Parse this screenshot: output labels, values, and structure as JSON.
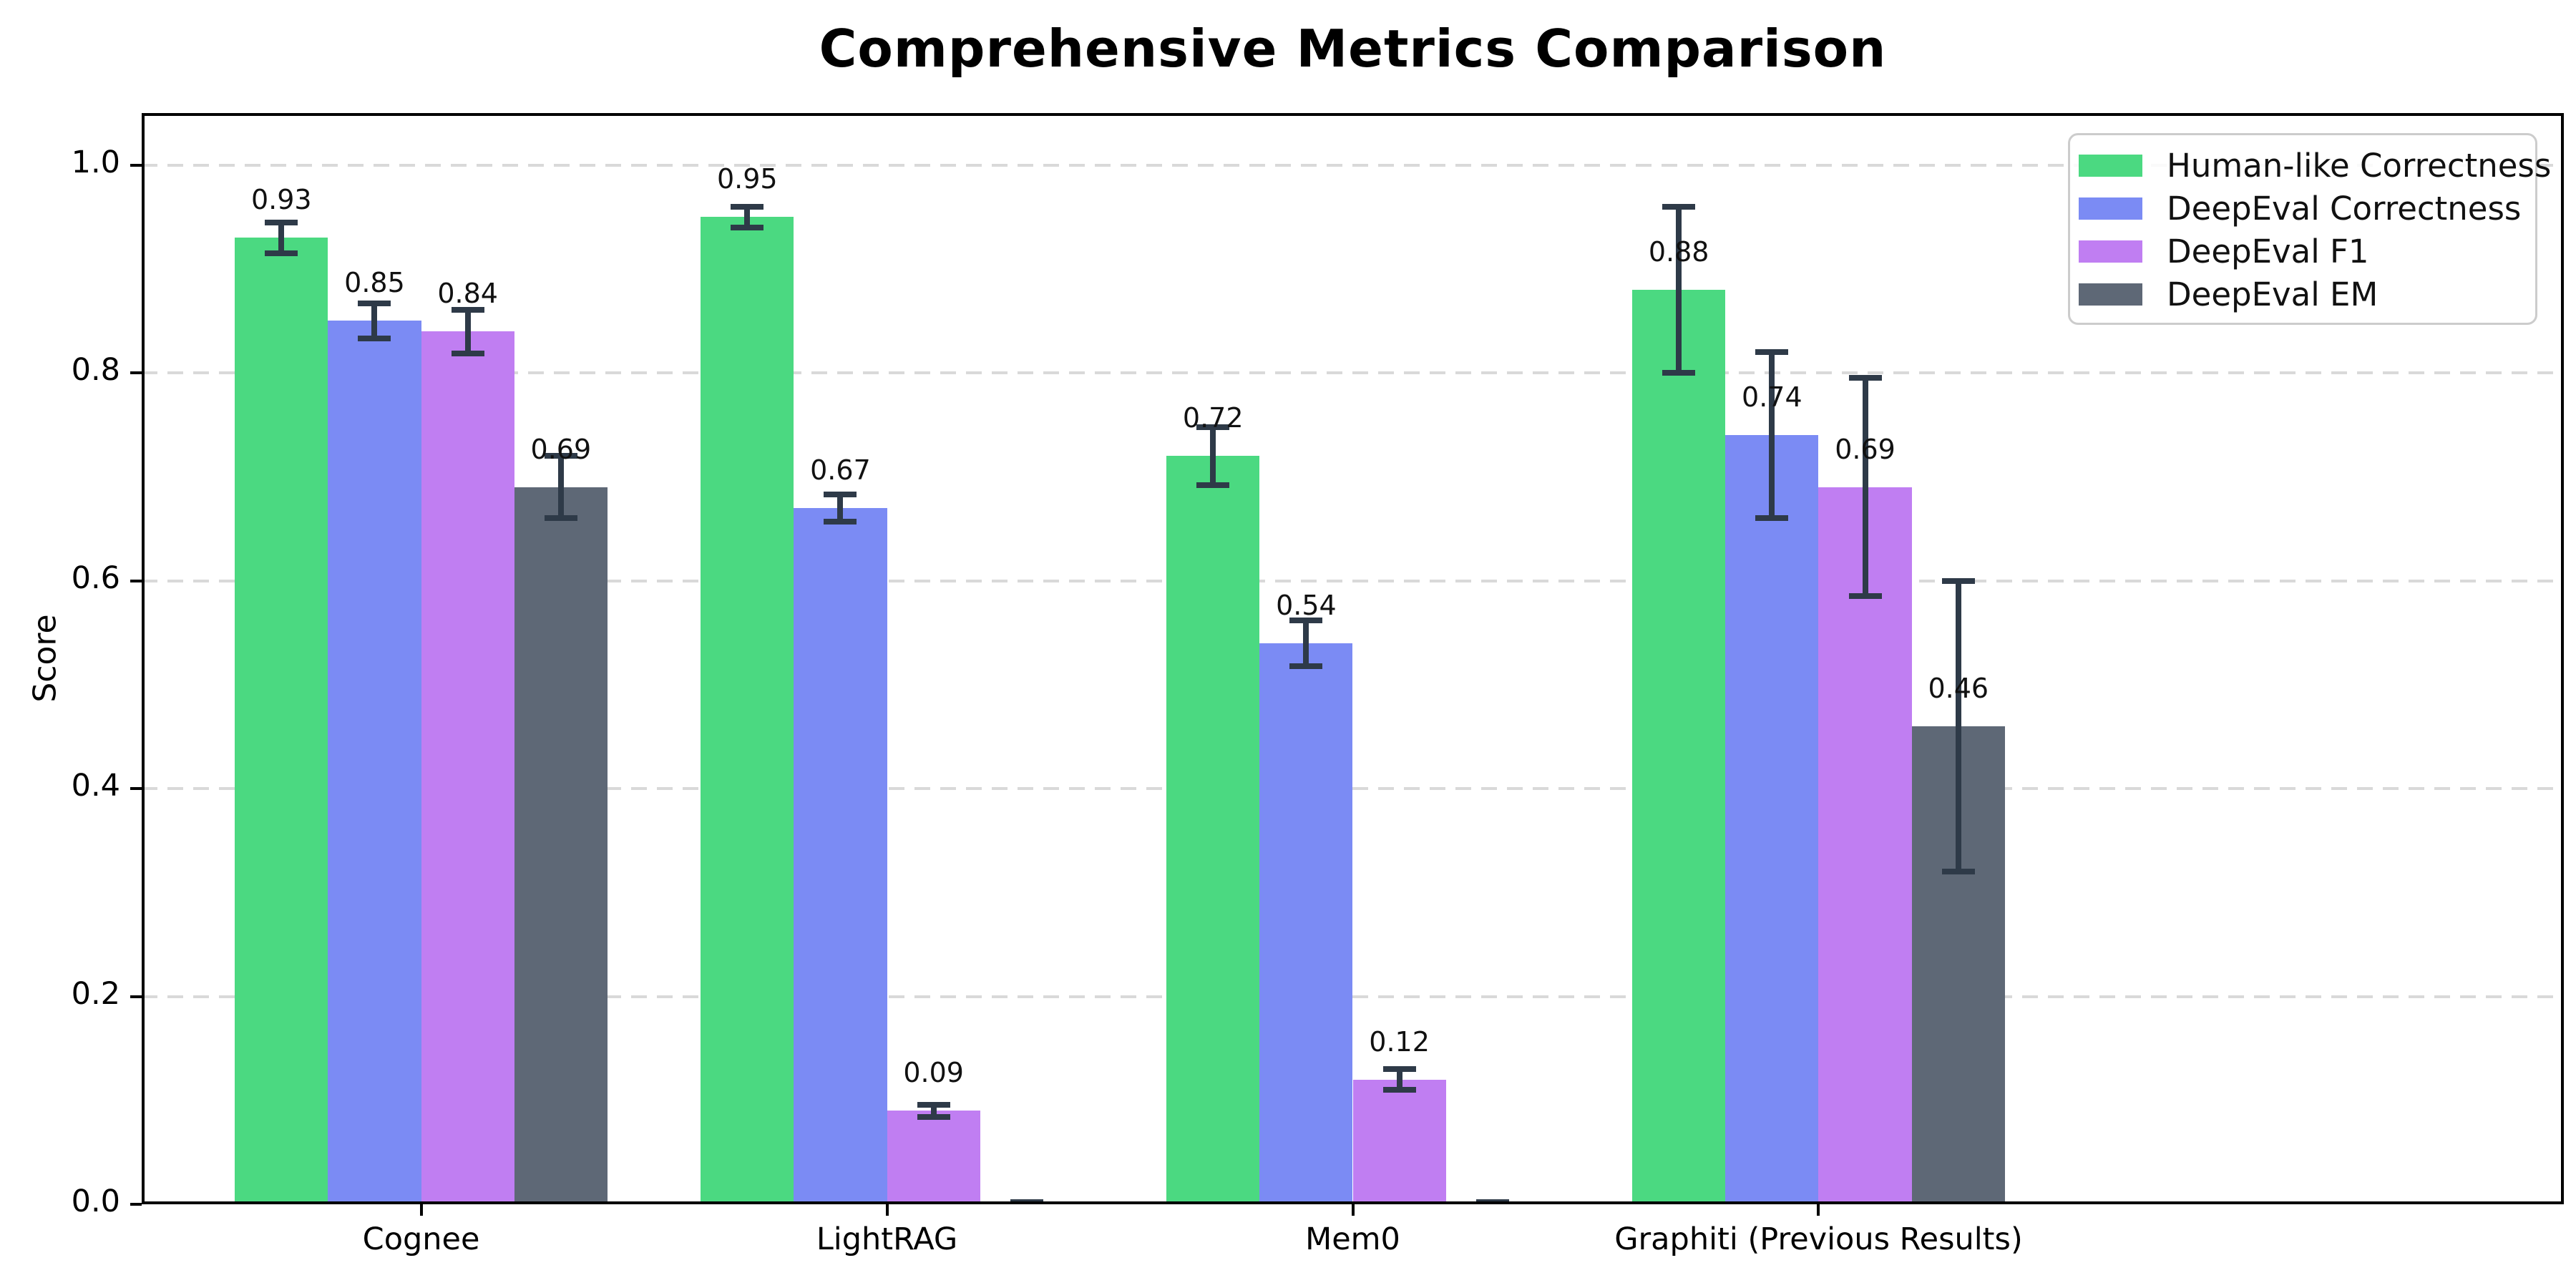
{
  "chart_data": {
    "type": "bar",
    "title": "Comprehensive Metrics Comparison",
    "ylabel": "Score",
    "xlabel": "",
    "categories": [
      "Cognee",
      "LightRAG",
      "Mem0",
      "Graphiti (Previous Results)"
    ],
    "series": [
      {
        "name": "Human-like Correctness",
        "color": "#4bd981",
        "values": [
          0.93,
          0.95,
          0.72,
          0.88
        ],
        "errors": [
          0.015,
          0.01,
          0.028,
          0.08
        ],
        "labels": [
          "0.93",
          "0.95",
          "0.72",
          "0.88"
        ]
      },
      {
        "name": "DeepEval Correctness",
        "color": "#7b8bf4",
        "values": [
          0.85,
          0.67,
          0.54,
          0.74
        ],
        "errors": [
          0.017,
          0.013,
          0.022,
          0.08
        ],
        "labels": [
          "0.85",
          "0.67",
          "0.54",
          "0.74"
        ]
      },
      {
        "name": "DeepEval F1",
        "color": "#c07ef2",
        "values": [
          0.84,
          0.09,
          0.12,
          0.69
        ],
        "errors": [
          0.021,
          0.006,
          0.01,
          0.105
        ],
        "labels": [
          "0.84",
          "0.09",
          "0.12",
          "0.69"
        ]
      },
      {
        "name": "DeepEval EM",
        "color": "#5e6876",
        "values": [
          0.69,
          0.0,
          0.0,
          0.46
        ],
        "errors": [
          0.03,
          0.002,
          0.002,
          0.14
        ],
        "labels": [
          "0.69",
          "",
          "",
          "0.46"
        ]
      }
    ],
    "ylim": [
      0,
      1.05
    ],
    "yticks": [
      "0.0",
      "0.2",
      "0.4",
      "0.6",
      "0.8",
      "1.0"
    ],
    "grid": "horizontal dashed",
    "legend_position": "upper right",
    "error_bar_color": "#2e3a48",
    "bar_label_offset": 0.02
  }
}
